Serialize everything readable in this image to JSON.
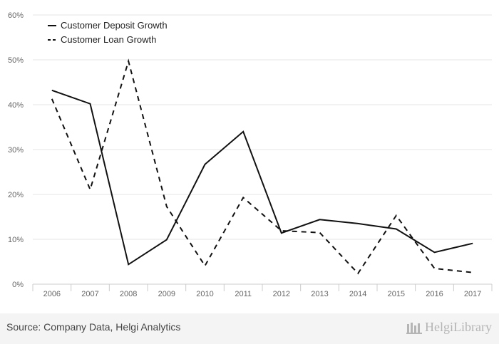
{
  "chart_data": {
    "type": "line",
    "categories": [
      "2006",
      "2007",
      "2008",
      "2009",
      "2010",
      "2011",
      "2012",
      "2013",
      "2014",
      "2015",
      "2016",
      "2017"
    ],
    "ylim": [
      0,
      60
    ],
    "yticks": [
      0,
      10,
      20,
      30,
      40,
      50,
      60
    ],
    "ytick_labels": [
      "0%",
      "10%",
      "20%",
      "30%",
      "40%",
      "50%",
      "60%"
    ],
    "grid": true,
    "legend_position": "top-left",
    "series": [
      {
        "name": "Customer Deposit Growth",
        "style": "solid",
        "color": "#111111",
        "values": [
          43.2,
          40.2,
          4.4,
          9.9,
          26.7,
          34.0,
          11.4,
          14.4,
          13.5,
          12.3,
          7.1,
          9.1
        ]
      },
      {
        "name": "Customer Loan Growth",
        "style": "dashed",
        "color": "#111111",
        "values": [
          41.3,
          21.1,
          49.7,
          17.3,
          4.1,
          19.3,
          11.9,
          11.5,
          2.4,
          15.3,
          3.5,
          2.6
        ]
      }
    ]
  },
  "footer": {
    "source": "Source: Company Data, Helgi Analytics",
    "brand": "HelgiLibrary"
  },
  "colors": {
    "grid": "#e6e6e6",
    "axis": "#cccccc",
    "footer_bg": "#f4f4f4",
    "brand": "#b5b5b5"
  }
}
